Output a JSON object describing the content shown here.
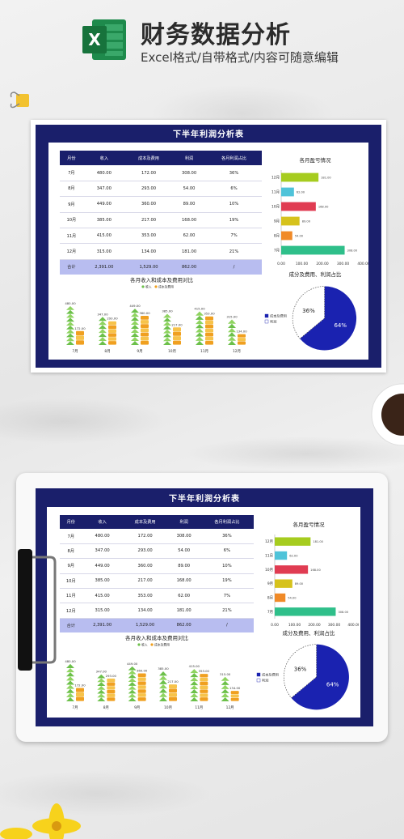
{
  "header": {
    "title": "财务数据分析",
    "subtitle": "Excel格式/自带格式/内容可随意编辑",
    "logo_letter": "X"
  },
  "sheet": {
    "title": "下半年利润分析表",
    "columns": [
      "月份",
      "收入",
      "成本及费用",
      "利润",
      "各月利润占比"
    ],
    "rows": [
      [
        "7月",
        "480.00",
        "172.00",
        "308.00",
        "36%"
      ],
      [
        "8月",
        "347.00",
        "293.00",
        "54.00",
        "6%"
      ],
      [
        "9月",
        "449.00",
        "360.00",
        "89.00",
        "10%"
      ],
      [
        "10月",
        "385.00",
        "217.00",
        "168.00",
        "19%"
      ],
      [
        "11月",
        "415.00",
        "353.00",
        "62.00",
        "7%"
      ],
      [
        "12月",
        "315.00",
        "134.00",
        "181.00",
        "21%"
      ]
    ],
    "total": [
      "合计",
      "2,391.00",
      "1,529.00",
      "862.00",
      "/"
    ]
  },
  "chart_data": [
    {
      "type": "bar",
      "orientation": "horizontal",
      "title": "各月盈亏情况",
      "categories": [
        "12月",
        "11月",
        "10月",
        "9月",
        "8月",
        "7月"
      ],
      "values": [
        181,
        62,
        168,
        89,
        54,
        308
      ],
      "colors": [
        "#a6cc1f",
        "#4fc3d9",
        "#e03c52",
        "#d6c21c",
        "#f08a28",
        "#2fbf8a"
      ],
      "xlim": [
        0,
        400
      ],
      "xticks": [
        "0.00",
        "100.00",
        "200.00",
        "300.00",
        "400.00"
      ]
    },
    {
      "type": "bar",
      "title": "各月收入和成本及费用对比",
      "categories": [
        "7月",
        "8月",
        "9月",
        "10月",
        "11月",
        "12月"
      ],
      "series": [
        {
          "name": "收入",
          "values": [
            480,
            347,
            449,
            385,
            415,
            315
          ],
          "color": "#6cc04a"
        },
        {
          "name": "成本及费用",
          "values": [
            172,
            293,
            360,
            217,
            353,
            134
          ],
          "color": "#f0a020"
        }
      ],
      "value_labels": [
        [
          "480.00",
          "347.00",
          "449.00",
          "385.00",
          "415.00",
          "315.00"
        ],
        [
          "172.00",
          "293.00",
          "360.00",
          "217.00",
          "353.00",
          "134.00"
        ]
      ]
    },
    {
      "type": "pie",
      "title": "成分及费用、利润占比",
      "series": [
        {
          "name": "成本及费用",
          "value": 64,
          "label": "64%",
          "color": "#1a22b0"
        },
        {
          "name": "利润",
          "value": 36,
          "label": "36%",
          "color": "#ffffff"
        }
      ]
    }
  ]
}
